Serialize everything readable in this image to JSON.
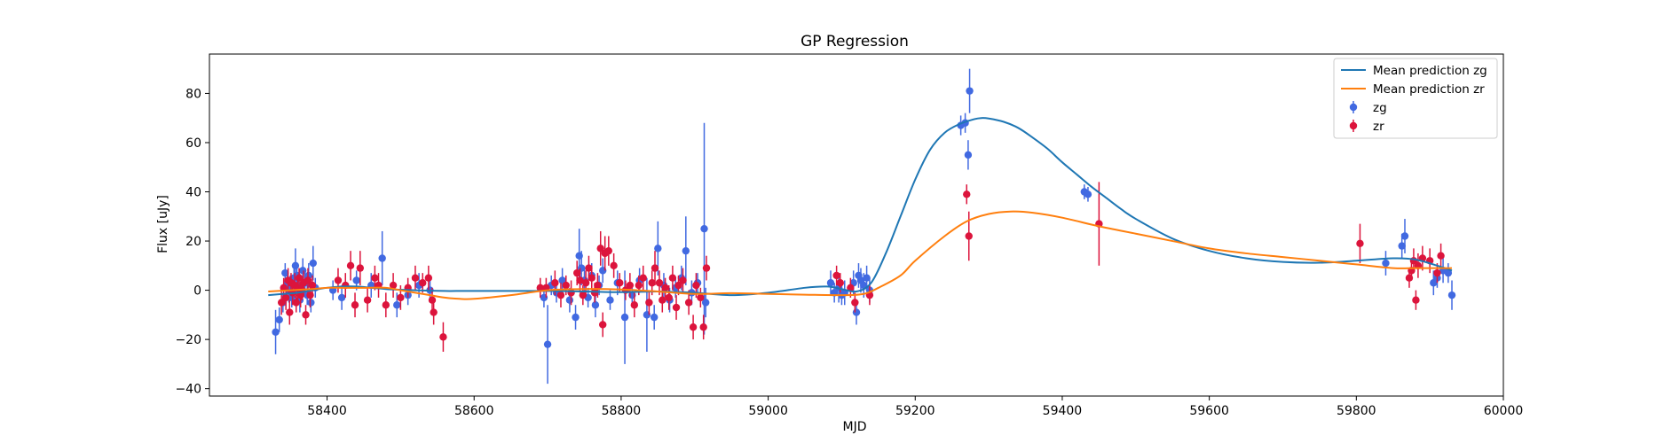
{
  "chart_data": {
    "type": "scatter",
    "title": "GP Regression",
    "xlabel": "MJD",
    "ylabel": "Flux [uJy]",
    "xlim": [
      58240,
      60000
    ],
    "ylim": [
      -43,
      96
    ],
    "xticks": [
      58400,
      58600,
      58800,
      59000,
      59200,
      59400,
      59600,
      59800,
      60000
    ],
    "yticks": [
      -40,
      -20,
      0,
      20,
      40,
      60,
      80
    ],
    "grid": false,
    "legend": {
      "position": "top-right",
      "entries": [
        "Mean prediction zg",
        "Mean prediction zr",
        "zg",
        "zr"
      ]
    },
    "colors": {
      "mean_zg": "#1f77b4",
      "mean_zr": "#ff7f0e",
      "zg": "#4169e1",
      "zr": "#dc143c"
    },
    "series": [
      {
        "name": "Mean prediction zg",
        "kind": "line",
        "x": [
          58320,
          58340,
          58360,
          58380,
          58400,
          58420,
          58440,
          58460,
          58480,
          58500,
          58520,
          58540,
          58560,
          58580,
          58600,
          58650,
          58700,
          58750,
          58800,
          58850,
          58900,
          58950,
          59000,
          59050,
          59080,
          59100,
          59120,
          59140,
          59160,
          59180,
          59200,
          59220,
          59240,
          59260,
          59280,
          59290,
          59300,
          59320,
          59340,
          59360,
          59380,
          59400,
          59420,
          59440,
          59460,
          59480,
          59500,
          59550,
          59600,
          59650,
          59700,
          59750,
          59800,
          59850,
          59880,
          59910,
          59930
        ],
        "y": [
          -2,
          -1.5,
          -1,
          0,
          1,
          1.5,
          1.5,
          1,
          0.5,
          0.2,
          0,
          -0.2,
          -0.3,
          -0.3,
          -0.3,
          -0.3,
          -0.3,
          -0.5,
          -0.8,
          -0.5,
          -1,
          -2,
          -1,
          1,
          1.5,
          0.5,
          -0.5,
          3,
          15,
          30,
          45,
          57,
          64,
          67.5,
          69.5,
          70,
          69.8,
          68.5,
          66,
          62,
          57.5,
          52,
          47,
          42,
          37.5,
          33,
          29,
          21,
          16,
          13,
          11.5,
          11.2,
          12,
          13,
          12.5,
          10,
          8
        ]
      },
      {
        "name": "Mean prediction zr",
        "kind": "line",
        "x": [
          58320,
          58350,
          58380,
          58400,
          58420,
          58450,
          58480,
          58500,
          58520,
          58540,
          58560,
          58580,
          58600,
          58650,
          58700,
          58750,
          58800,
          58850,
          58900,
          58950,
          59000,
          59050,
          59100,
          59130,
          59150,
          59180,
          59200,
          59240,
          59270,
          59300,
          59330,
          59360,
          59400,
          59450,
          59500,
          59550,
          59600,
          59650,
          59700,
          59750,
          59800,
          59850,
          59880,
          59910,
          59930
        ],
        "y": [
          -0.5,
          0,
          0.5,
          1,
          1,
          1,
          1,
          0,
          -1,
          -2,
          -3,
          -3.5,
          -3.5,
          -2,
          0,
          0.5,
          0.3,
          -0.5,
          -1.5,
          -1.2,
          -1.5,
          -1.8,
          -2,
          -1.5,
          1,
          6,
          12,
          22,
          28,
          31,
          32,
          31.5,
          29.5,
          26,
          23,
          20,
          17,
          15,
          13.5,
          12,
          10.5,
          9,
          9,
          9,
          9
        ]
      },
      {
        "name": "zg",
        "kind": "errorbar",
        "points": [
          [
            58330,
            -17,
            9
          ],
          [
            58335,
            -12,
            5
          ],
          [
            58340,
            -5,
            4
          ],
          [
            58343,
            7,
            4
          ],
          [
            58346,
            3,
            4
          ],
          [
            58348,
            0,
            5
          ],
          [
            58350,
            2,
            4
          ],
          [
            58352,
            -3,
            4
          ],
          [
            58355,
            5,
            5
          ],
          [
            58357,
            10,
            7
          ],
          [
            58359,
            6,
            5
          ],
          [
            58361,
            0,
            4
          ],
          [
            58363,
            -4,
            5
          ],
          [
            58365,
            2,
            4
          ],
          [
            58367,
            8,
            5
          ],
          [
            58370,
            3,
            4
          ],
          [
            58373,
            -2,
            4
          ],
          [
            58375,
            6,
            5
          ],
          [
            58378,
            -5,
            4
          ],
          [
            58381,
            11,
            7
          ],
          [
            58384,
            1,
            4
          ],
          [
            58408,
            0,
            4
          ],
          [
            58420,
            -3,
            5
          ],
          [
            58440,
            4,
            4
          ],
          [
            58460,
            2,
            5
          ],
          [
            58475,
            13,
            11
          ],
          [
            58495,
            -6,
            5
          ],
          [
            58510,
            -2,
            4
          ],
          [
            58525,
            2,
            5
          ],
          [
            58540,
            0,
            5
          ],
          [
            58695,
            -3,
            4
          ],
          [
            58700,
            -22,
            16
          ],
          [
            58705,
            2,
            4
          ],
          [
            58712,
            -1,
            4
          ],
          [
            58720,
            4,
            5
          ],
          [
            58730,
            -4,
            5
          ],
          [
            58738,
            -11,
            5
          ],
          [
            58743,
            14,
            11
          ],
          [
            58746,
            9,
            7
          ],
          [
            58750,
            4,
            5
          ],
          [
            58755,
            -3,
            4
          ],
          [
            58760,
            6,
            5
          ],
          [
            58765,
            -6,
            5
          ],
          [
            58770,
            2,
            4
          ],
          [
            58775,
            8,
            5
          ],
          [
            58785,
            -4,
            4
          ],
          [
            58795,
            3,
            5
          ],
          [
            58805,
            -11,
            19
          ],
          [
            58815,
            -2,
            4
          ],
          [
            58825,
            4,
            5
          ],
          [
            58835,
            -10,
            15
          ],
          [
            58845,
            -11,
            5
          ],
          [
            58850,
            17,
            11
          ],
          [
            58858,
            2,
            5
          ],
          [
            58866,
            -4,
            5
          ],
          [
            58874,
            1,
            4
          ],
          [
            58882,
            5,
            5
          ],
          [
            58888,
            16,
            14
          ],
          [
            58896,
            -1,
            5
          ],
          [
            58904,
            3,
            4
          ],
          [
            58913,
            25,
            43
          ],
          [
            58915,
            -5,
            6
          ],
          [
            59085,
            3,
            5
          ],
          [
            59090,
            -1,
            4
          ],
          [
            59096,
            1,
            6
          ],
          [
            59100,
            -2,
            4
          ],
          [
            59104,
            -1,
            5
          ],
          [
            59116,
            3,
            5
          ],
          [
            59120,
            -9,
            5
          ],
          [
            59123,
            6,
            5
          ],
          [
            59126,
            4,
            5
          ],
          [
            59130,
            2,
            5
          ],
          [
            59134,
            5,
            5
          ],
          [
            59138,
            0,
            5
          ],
          [
            59262,
            67,
            4
          ],
          [
            59268,
            68,
            4
          ],
          [
            59272,
            55,
            6
          ],
          [
            59274,
            81,
            9
          ],
          [
            59430,
            40,
            3
          ],
          [
            59435,
            39,
            3
          ],
          [
            59840,
            11,
            5
          ],
          [
            59862,
            18,
            5
          ],
          [
            59866,
            22,
            7
          ],
          [
            59905,
            3,
            5
          ],
          [
            59910,
            5,
            4
          ],
          [
            59918,
            8,
            5
          ],
          [
            59925,
            7,
            4
          ],
          [
            59930,
            -2,
            6
          ]
        ]
      },
      {
        "name": "zr",
        "kind": "errorbar",
        "points": [
          [
            58338,
            -5,
            5
          ],
          [
            58341,
            1,
            4
          ],
          [
            58344,
            -3,
            5
          ],
          [
            58347,
            4,
            5
          ],
          [
            58349,
            -9,
            5
          ],
          [
            58351,
            3,
            4
          ],
          [
            58353,
            -1,
            5
          ],
          [
            58356,
            2,
            5
          ],
          [
            58358,
            -5,
            4
          ],
          [
            58360,
            1,
            5
          ],
          [
            58362,
            5,
            4
          ],
          [
            58364,
            -2,
            5
          ],
          [
            58366,
            0,
            4
          ],
          [
            58368,
            3,
            5
          ],
          [
            58371,
            -10,
            4
          ],
          [
            58374,
            4,
            5
          ],
          [
            58377,
            -2,
            5
          ],
          [
            58380,
            2,
            4
          ],
          [
            58415,
            4,
            5
          ],
          [
            58425,
            2,
            5
          ],
          [
            58432,
            10,
            6
          ],
          [
            58438,
            -6,
            5
          ],
          [
            58445,
            9,
            7
          ],
          [
            58455,
            -4,
            5
          ],
          [
            58465,
            5,
            5
          ],
          [
            58470,
            2,
            5
          ],
          [
            58480,
            -6,
            5
          ],
          [
            58490,
            2,
            5
          ],
          [
            58500,
            -3,
            5
          ],
          [
            58510,
            1,
            4
          ],
          [
            58520,
            5,
            5
          ],
          [
            58530,
            3,
            4
          ],
          [
            58538,
            5,
            5
          ],
          [
            58543,
            -4,
            5
          ],
          [
            58545,
            -9,
            5
          ],
          [
            58558,
            -19,
            6
          ],
          [
            58690,
            1,
            4
          ],
          [
            58698,
            1,
            4
          ],
          [
            58710,
            3,
            5
          ],
          [
            58718,
            -2,
            5
          ],
          [
            58725,
            2,
            4
          ],
          [
            58732,
            -1,
            5
          ],
          [
            58740,
            7,
            5
          ],
          [
            58744,
            4,
            5
          ],
          [
            58748,
            -2,
            4
          ],
          [
            58752,
            3,
            5
          ],
          [
            58756,
            9,
            5
          ],
          [
            58760,
            5,
            5
          ],
          [
            58764,
            -1,
            4
          ],
          [
            58768,
            2,
            5
          ],
          [
            58772,
            17,
            7
          ],
          [
            58775,
            -14,
            5
          ],
          [
            58778,
            15,
            7
          ],
          [
            58783,
            16,
            6
          ],
          [
            58790,
            10,
            5
          ],
          [
            58798,
            3,
            4
          ],
          [
            58806,
            0,
            4
          ],
          [
            58812,
            2,
            5
          ],
          [
            58818,
            -6,
            5
          ],
          [
            58824,
            2,
            4
          ],
          [
            58830,
            5,
            5
          ],
          [
            58838,
            -5,
            5
          ],
          [
            58842,
            3,
            5
          ],
          [
            58846,
            9,
            7
          ],
          [
            58852,
            3,
            5
          ],
          [
            58856,
            -4,
            5
          ],
          [
            58860,
            1,
            4
          ],
          [
            58865,
            -3,
            5
          ],
          [
            58870,
            5,
            5
          ],
          [
            58875,
            -7,
            5
          ],
          [
            58878,
            2,
            4
          ],
          [
            58884,
            4,
            5
          ],
          [
            58892,
            -5,
            5
          ],
          [
            58898,
            -15,
            5
          ],
          [
            58902,
            2,
            5
          ],
          [
            58908,
            -3,
            4
          ],
          [
            58912,
            -15,
            5
          ],
          [
            58916,
            9,
            5
          ],
          [
            59093,
            6,
            4
          ],
          [
            59098,
            3,
            4
          ],
          [
            59112,
            1,
            4
          ],
          [
            59118,
            -5,
            4
          ],
          [
            59138,
            -2,
            4
          ],
          [
            59270,
            39,
            4
          ],
          [
            59273,
            22,
            10
          ],
          [
            59450,
            27,
            17
          ],
          [
            59805,
            19,
            8
          ],
          [
            59872,
            5,
            4
          ],
          [
            59875,
            8,
            4
          ],
          [
            59878,
            12,
            5
          ],
          [
            59881,
            -4,
            4
          ],
          [
            59884,
            10,
            5
          ],
          [
            59890,
            13,
            5
          ],
          [
            59900,
            12,
            5
          ],
          [
            59910,
            7,
            4
          ],
          [
            59915,
            14,
            5
          ]
        ]
      }
    ]
  }
}
